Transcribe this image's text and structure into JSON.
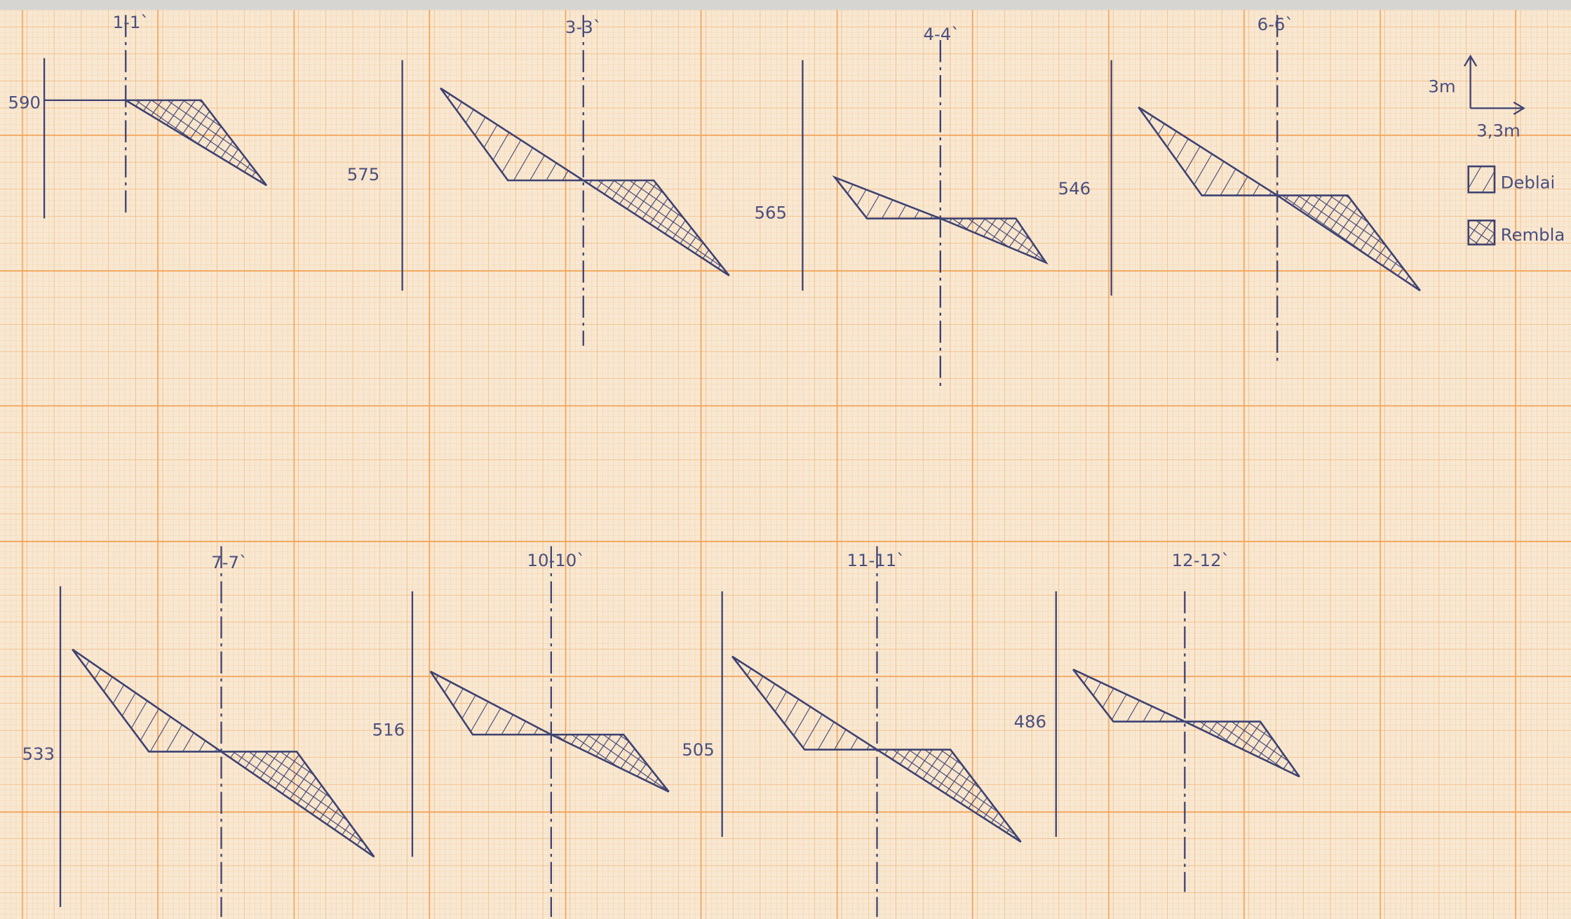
{
  "sections": [
    {
      "label": "1-1`",
      "elevation": "590"
    },
    {
      "label": "3-3`",
      "elevation": "575"
    },
    {
      "label": "4-4`",
      "elevation": "565"
    },
    {
      "label": "6-6`",
      "elevation": "546"
    },
    {
      "label": "7-7`",
      "elevation": "533"
    },
    {
      "label": "10-10`",
      "elevation": "516"
    },
    {
      "label": "11-11`",
      "elevation": "505"
    },
    {
      "label": "12-12`",
      "elevation": "486"
    }
  ],
  "legend": {
    "vertical_scale": "3m",
    "horizontal_scale": "3,3m",
    "items": [
      "Deblai",
      "Rembla"
    ]
  }
}
